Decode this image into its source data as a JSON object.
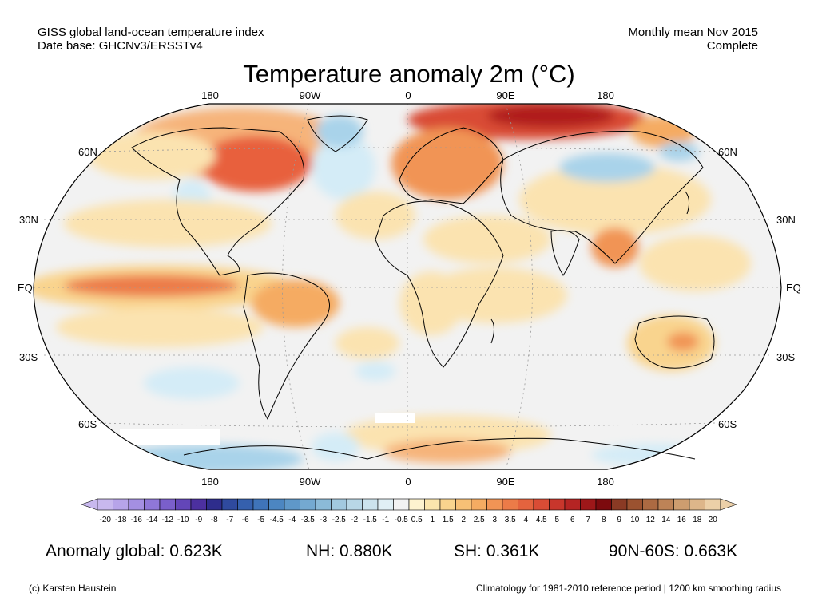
{
  "header": {
    "left_line1": "GISS global land-ocean temperature index",
    "left_line2": "Date base: GHCNv3/ERSSTv4",
    "right_line1": "Monthly mean Nov 2015",
    "right_line2": "Complete",
    "title": "Temperature anomaly 2m (°C)"
  },
  "map": {
    "projection": "Robinson",
    "lon_labels": [
      "180",
      "90W",
      "0",
      "90E",
      "180"
    ],
    "lat_labels": [
      "60N",
      "30N",
      "EQ",
      "30S",
      "60S"
    ],
    "colors": {
      "ocean_neutral": "#f2f2f2",
      "land_neutral": "#ffffff",
      "warm_weak": "#fbe3b0",
      "warm_mid": "#f6b47a",
      "warm_strong": "#e8603c",
      "warm_extreme": "#b01c1c",
      "cold_weak": "#d4ecf7",
      "cold_mid": "#a9d3ea",
      "cold_strong": "#5f9ecf"
    }
  },
  "colorbar": {
    "labels": [
      "-20",
      "-18",
      "-16",
      "-14",
      "-12",
      "-10",
      "-9",
      "-8",
      "-7",
      "-6",
      "-5",
      "-4.5",
      "-4",
      "-3.5",
      "-3",
      "-2.5",
      "-2",
      "-1.5",
      "-1",
      "-0.5",
      "0.5",
      "1",
      "1.5",
      "2",
      "2.5",
      "3",
      "3.5",
      "4",
      "4.5",
      "5",
      "6",
      "7",
      "8",
      "9",
      "10",
      "12",
      "14",
      "16",
      "18",
      "20"
    ],
    "colors": [
      "#c8b8ee",
      "#b7a4e9",
      "#a48fe2",
      "#8f77d8",
      "#7a5fcb",
      "#6346b8",
      "#4c30a0",
      "#2e2d8c",
      "#2f4a9e",
      "#3560ad",
      "#3f74b9",
      "#4c86c1",
      "#5f98c9",
      "#74a9d1",
      "#8bbad8",
      "#a2c9df",
      "#b8d7e6",
      "#cce3ed",
      "#e0eff5",
      "#f2f2f2",
      "#fdf3cf",
      "#fbe6ad",
      "#f9d48e",
      "#f7c076",
      "#f5ab62",
      "#f19455",
      "#ec7b48",
      "#e4633e",
      "#d94c35",
      "#c8362c",
      "#b52423",
      "#9e1719",
      "#7c0a0e",
      "#8a3a24",
      "#9b5230",
      "#ac6a42",
      "#bd8357",
      "#cd9d6f",
      "#ddb68a",
      "#ecd0a8"
    ]
  },
  "stats": {
    "global": "Anomaly global: 0.623K",
    "nh": "NH: 0.880K",
    "sh": "SH: 0.361K",
    "band": "90N-60S: 0.663K"
  },
  "footer": {
    "left": "(c) Karsten Haustein",
    "right": "Climatology for 1981-2010 reference period | 1200 km smoothing radius"
  }
}
